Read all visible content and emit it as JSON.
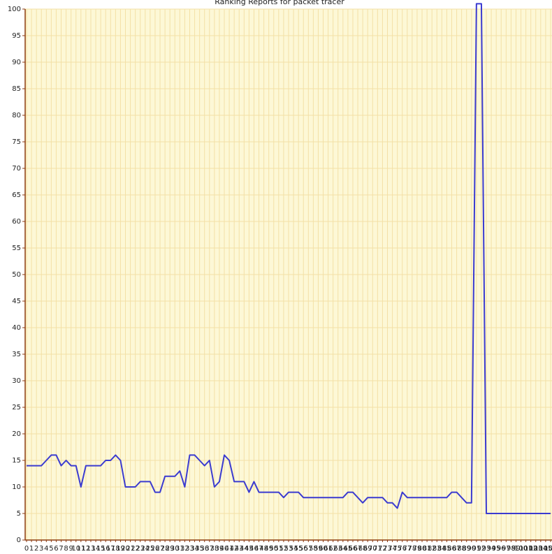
{
  "chart_data": {
    "type": "line",
    "title": "Ranking Reports for packet tracer",
    "categories": [
      "0",
      "1",
      "2",
      "3",
      "4",
      "5",
      "6",
      "7",
      "8",
      "9",
      "10",
      "11",
      "12",
      "13",
      "14",
      "15",
      "16",
      "17",
      "18",
      "19",
      "20",
      "21",
      "22",
      "23",
      "24",
      "25",
      "26",
      "27",
      "28",
      "29",
      "30",
      "31",
      "32",
      "33",
      "34",
      "35",
      "36",
      "37",
      "38",
      "39",
      "40",
      "41",
      "42",
      "43",
      "44",
      "45",
      "46",
      "47",
      "48",
      "49",
      "50",
      "51",
      "52",
      "53",
      "54",
      "55",
      "56",
      "57",
      "58",
      "59",
      "60",
      "61",
      "62",
      "63",
      "64",
      "65",
      "66",
      "67",
      "68",
      "69",
      "70",
      "71",
      "72",
      "73",
      "74",
      "75",
      "76",
      "77",
      "78",
      "79",
      "80",
      "81",
      "82",
      "83",
      "84",
      "85",
      "86",
      "87",
      "88",
      "89",
      "90",
      "91",
      "92",
      "93",
      "94",
      "95",
      "96",
      "97",
      "98",
      "99",
      "100",
      "101",
      "102",
      "103",
      "104",
      "105",
      "106"
    ],
    "values": [
      14,
      14,
      14,
      14,
      15,
      16,
      16,
      14,
      15,
      14,
      14,
      10,
      14,
      14,
      14,
      14,
      15,
      15,
      16,
      15,
      10,
      10,
      10,
      11,
      11,
      11,
      9,
      9,
      12,
      12,
      12,
      13,
      10,
      16,
      16,
      15,
      14,
      15,
      10,
      11,
      16,
      15,
      11,
      11,
      11,
      9,
      11,
      9,
      9,
      9,
      9,
      9,
      8,
      9,
      9,
      9,
      8,
      8,
      8,
      8,
      8,
      8,
      8,
      8,
      8,
      9,
      9,
      8,
      7,
      8,
      8,
      8,
      8,
      7,
      7,
      6,
      9,
      8,
      8,
      8,
      8,
      8,
      8,
      8,
      8,
      8,
      9,
      9,
      8,
      7,
      7,
      101,
      101,
      5,
      5,
      5,
      5,
      5,
      5,
      5,
      5,
      5,
      5,
      5,
      5,
      5,
      5
    ],
    "color": "#3b3bd0",
    "ylim": [
      0,
      100
    ],
    "yticks": [
      0,
      5,
      10,
      15,
      20,
      25,
      30,
      35,
      40,
      45,
      50,
      55,
      60,
      65,
      70,
      75,
      80,
      85,
      90,
      95,
      100
    ],
    "grid": true
  }
}
